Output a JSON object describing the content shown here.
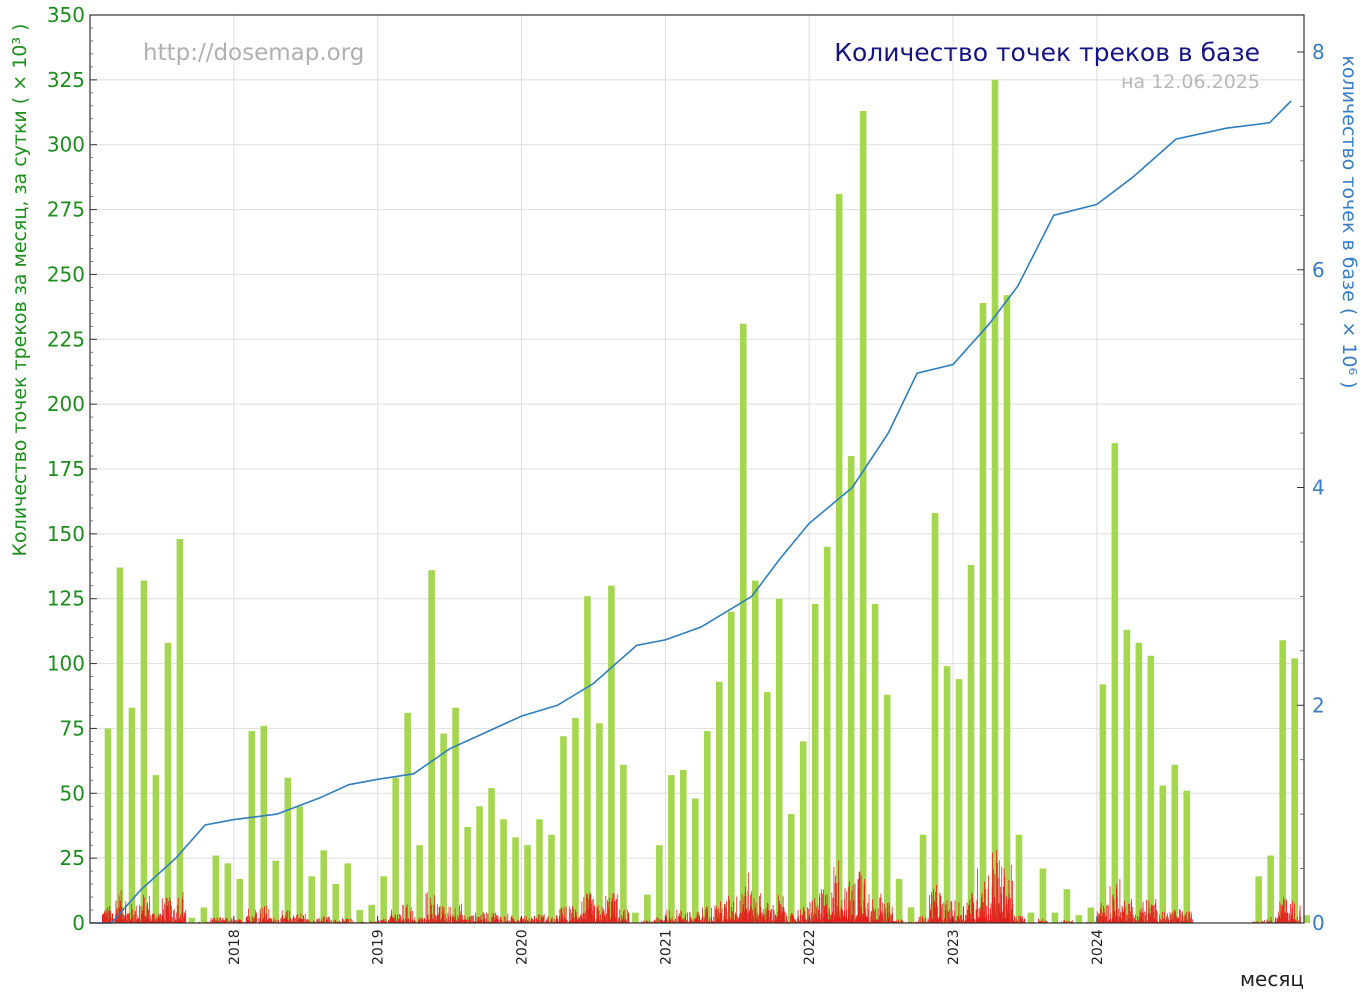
{
  "chart_data": {
    "type": "bar",
    "title": "Количество точек треков в базе",
    "subtitle": "на 12.06.2025",
    "watermark": "http://dosemap.org",
    "xlabel": "месяц",
    "ylabel_left": "Количество точек треков  за месяц, за сутки ( × 10³ )",
    "ylabel_right": "количество точек в базе ( × 10⁶ )",
    "ylim_left": [
      0,
      350
    ],
    "yticks_left": [
      0,
      25,
      50,
      75,
      100,
      125,
      150,
      175,
      200,
      225,
      250,
      275,
      300,
      325,
      350
    ],
    "ylim_right": [
      0,
      8.34
    ],
    "yticks_right": [
      0,
      2,
      4,
      6,
      8
    ],
    "xlim": [
      2017.0,
      2025.44
    ],
    "year_ticks": [
      {
        "label": "2018",
        "x": 2018.0
      },
      {
        "label": "2019",
        "x": 2019.0
      },
      {
        "label": "2020",
        "x": 2020.0
      },
      {
        "label": "2021",
        "x": 2021.0
      },
      {
        "label": "2022",
        "x": 2022.0
      },
      {
        "label": "2023",
        "x": 2023.0
      },
      {
        "label": "2024",
        "x": 2024.0
      }
    ],
    "grid": true,
    "colors": {
      "monthly_bars": "#a5d64f",
      "daily_bars": "#e0241d",
      "cumulative_line": "#2f7ebd",
      "left_axis": "#1e8c1e",
      "right_axis": "#3a7cbf",
      "title": "#141482",
      "watermark": "#b0b0b0",
      "grid": "#dddddd"
    },
    "series": [
      {
        "name": "monthly",
        "start_month": "2017-01",
        "values": [
          0,
          75,
          137,
          83,
          132,
          57,
          108,
          148,
          2,
          6,
          26,
          23,
          17,
          74,
          76,
          24,
          56,
          45,
          18,
          28,
          15,
          23,
          5,
          7,
          18,
          56,
          81,
          30,
          136,
          73,
          83,
          37,
          45,
          52,
          40,
          33,
          30,
          40,
          34,
          72,
          79,
          126,
          77,
          130,
          61,
          4,
          11,
          30,
          57,
          59,
          48,
          74,
          93,
          120,
          231,
          132,
          89,
          125,
          42,
          70,
          123,
          145,
          281,
          180,
          313,
          123,
          88,
          17,
          6,
          34,
          158,
          99,
          94,
          138,
          239,
          325,
          242,
          34,
          4,
          21,
          4,
          13,
          3,
          6,
          92,
          185,
          113,
          108,
          103,
          53,
          61,
          51,
          0,
          0,
          0,
          0,
          0,
          18,
          26,
          109,
          102,
          3
        ]
      },
      {
        "name": "cumulative",
        "points": [
          [
            2017.0,
            0.0
          ],
          [
            2017.15,
            0.0
          ],
          [
            2017.35,
            0.3
          ],
          [
            2017.6,
            0.6
          ],
          [
            2017.8,
            0.9
          ],
          [
            2018.0,
            0.95
          ],
          [
            2018.3,
            1.0
          ],
          [
            2018.6,
            1.15
          ],
          [
            2018.8,
            1.27
          ],
          [
            2019.0,
            1.32
          ],
          [
            2019.25,
            1.37
          ],
          [
            2019.5,
            1.6
          ],
          [
            2019.75,
            1.75
          ],
          [
            2020.0,
            1.9
          ],
          [
            2020.25,
            2.0
          ],
          [
            2020.5,
            2.2
          ],
          [
            2020.8,
            2.55
          ],
          [
            2021.0,
            2.6
          ],
          [
            2021.25,
            2.72
          ],
          [
            2021.6,
            3.0
          ],
          [
            2021.8,
            3.35
          ],
          [
            2022.0,
            3.67
          ],
          [
            2022.3,
            4.0
          ],
          [
            2022.55,
            4.5
          ],
          [
            2022.75,
            5.05
          ],
          [
            2023.0,
            5.13
          ],
          [
            2023.25,
            5.5
          ],
          [
            2023.45,
            5.85
          ],
          [
            2023.7,
            6.5
          ],
          [
            2024.0,
            6.6
          ],
          [
            2024.25,
            6.85
          ],
          [
            2024.55,
            7.2
          ],
          [
            2024.9,
            7.3
          ],
          [
            2025.2,
            7.35
          ],
          [
            2025.35,
            7.55
          ]
        ]
      }
    ]
  }
}
